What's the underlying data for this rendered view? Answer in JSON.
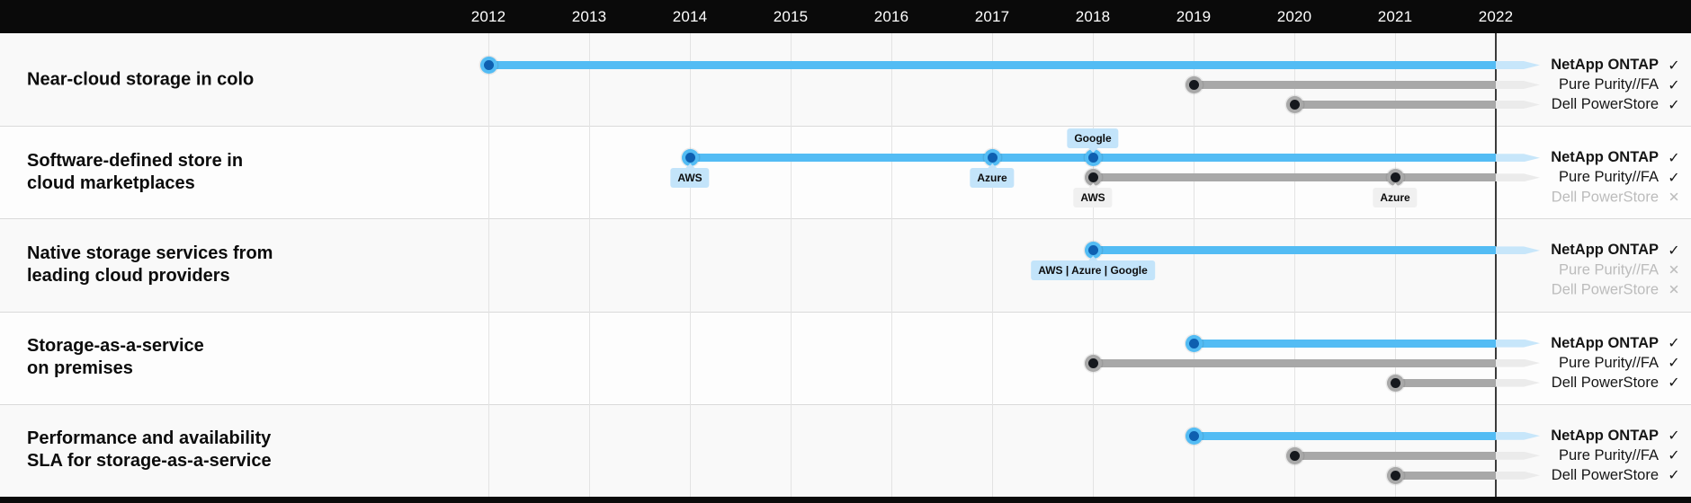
{
  "colors": {
    "header_bg": "#0a0a0a",
    "footer_bg": "#0a0a0a",
    "axis_text": "#ffffff",
    "row_bg_odd": "#f9f9f9",
    "row_bg_even": "#fdfdfd",
    "row_separator": "#dadada",
    "gridline": "#e3e3e3",
    "gridline_current_year": "#3b3b3b",
    "category_text": "#0c0c0c",
    "vendor_text": "#161616",
    "vendor_text_disabled": "#bcbcbc",
    "netapp_blue": "#53bcf4",
    "netapp_blue_fade": "#c7e6fa",
    "netapp_dot_blue": "#0e5fb0",
    "competitor_gray": "#a8a8a8",
    "competitor_gray_fade": "#ebebeb",
    "competitor_dot_dark": "#15181d",
    "callout_blue_bg": "#c3e4fa",
    "callout_gray_bg": "#f0f0f0",
    "callout_text": "#0c0c0c"
  },
  "chart_data": {
    "type": "timeline",
    "title": "",
    "axis": {
      "years": [
        2012,
        2013,
        2014,
        2015,
        2016,
        2017,
        2018,
        2019,
        2020,
        2021,
        2022
      ],
      "highlight_year": 2022
    },
    "marks": {
      "supported": "✓",
      "unsupported": "✕"
    },
    "rows": [
      {
        "label_lines": [
          "Near-cloud storage in colo"
        ],
        "vendors": [
          {
            "name": "NetApp ONTAP",
            "palette": "blue",
            "supported": true,
            "start_year": 2012,
            "milestones": [
              {
                "year": 2012
              }
            ]
          },
          {
            "name": "Pure Purity//FA",
            "palette": "gray",
            "supported": true,
            "start_year": 2019,
            "milestones": [
              {
                "year": 2019
              }
            ]
          },
          {
            "name": "Dell PowerStore",
            "palette": "gray",
            "supported": true,
            "start_year": 2020,
            "milestones": [
              {
                "year": 2020
              }
            ]
          }
        ]
      },
      {
        "label_lines": [
          "Software-defined store in",
          "cloud marketplaces"
        ],
        "vendors": [
          {
            "name": "NetApp ONTAP",
            "palette": "blue",
            "supported": true,
            "start_year": 2014,
            "milestones": [
              {
                "year": 2014,
                "label": "AWS",
                "placement": "below"
              },
              {
                "year": 2017,
                "label": "Azure",
                "placement": "below"
              },
              {
                "year": 2018,
                "label": "Google",
                "placement": "above"
              }
            ]
          },
          {
            "name": "Pure Purity//FA",
            "palette": "gray",
            "supported": true,
            "start_year": 2018,
            "milestones": [
              {
                "year": 2018,
                "label": "AWS",
                "placement": "below"
              },
              {
                "year": 2021,
                "label": "Azure",
                "placement": "below"
              }
            ]
          },
          {
            "name": "Dell PowerStore",
            "palette": "gray",
            "supported": false
          }
        ]
      },
      {
        "label_lines": [
          "Native storage services from",
          "leading cloud providers"
        ],
        "vendors": [
          {
            "name": "NetApp ONTAP",
            "palette": "blue",
            "supported": true,
            "start_year": 2018,
            "milestones": [
              {
                "year": 2018,
                "label": "AWS | Azure | Google",
                "placement": "below"
              }
            ]
          },
          {
            "name": "Pure Purity//FA",
            "palette": "gray",
            "supported": false
          },
          {
            "name": "Dell PowerStore",
            "palette": "gray",
            "supported": false
          }
        ]
      },
      {
        "label_lines": [
          "Storage-as-a-service",
          "on premises"
        ],
        "vendors": [
          {
            "name": "NetApp ONTAP",
            "palette": "blue",
            "supported": true,
            "start_year": 2019,
            "milestones": [
              {
                "year": 2019
              }
            ]
          },
          {
            "name": "Pure Purity//FA",
            "palette": "gray",
            "supported": true,
            "start_year": 2018,
            "milestones": [
              {
                "year": 2018
              }
            ]
          },
          {
            "name": "Dell PowerStore",
            "palette": "gray",
            "supported": true,
            "start_year": 2021,
            "milestones": [
              {
                "year": 2021
              }
            ]
          }
        ]
      },
      {
        "label_lines": [
          "Performance and availability",
          "SLA for storage-as-a-service"
        ],
        "vendors": [
          {
            "name": "NetApp ONTAP",
            "palette": "blue",
            "supported": true,
            "start_year": 2019,
            "milestones": [
              {
                "year": 2019
              }
            ]
          },
          {
            "name": "Pure Purity//FA",
            "palette": "gray",
            "supported": true,
            "start_year": 2020,
            "milestones": [
              {
                "year": 2020
              }
            ]
          },
          {
            "name": "Dell PowerStore",
            "palette": "gray",
            "supported": true,
            "start_year": 2021,
            "milestones": [
              {
                "year": 2021
              }
            ]
          }
        ]
      }
    ]
  }
}
